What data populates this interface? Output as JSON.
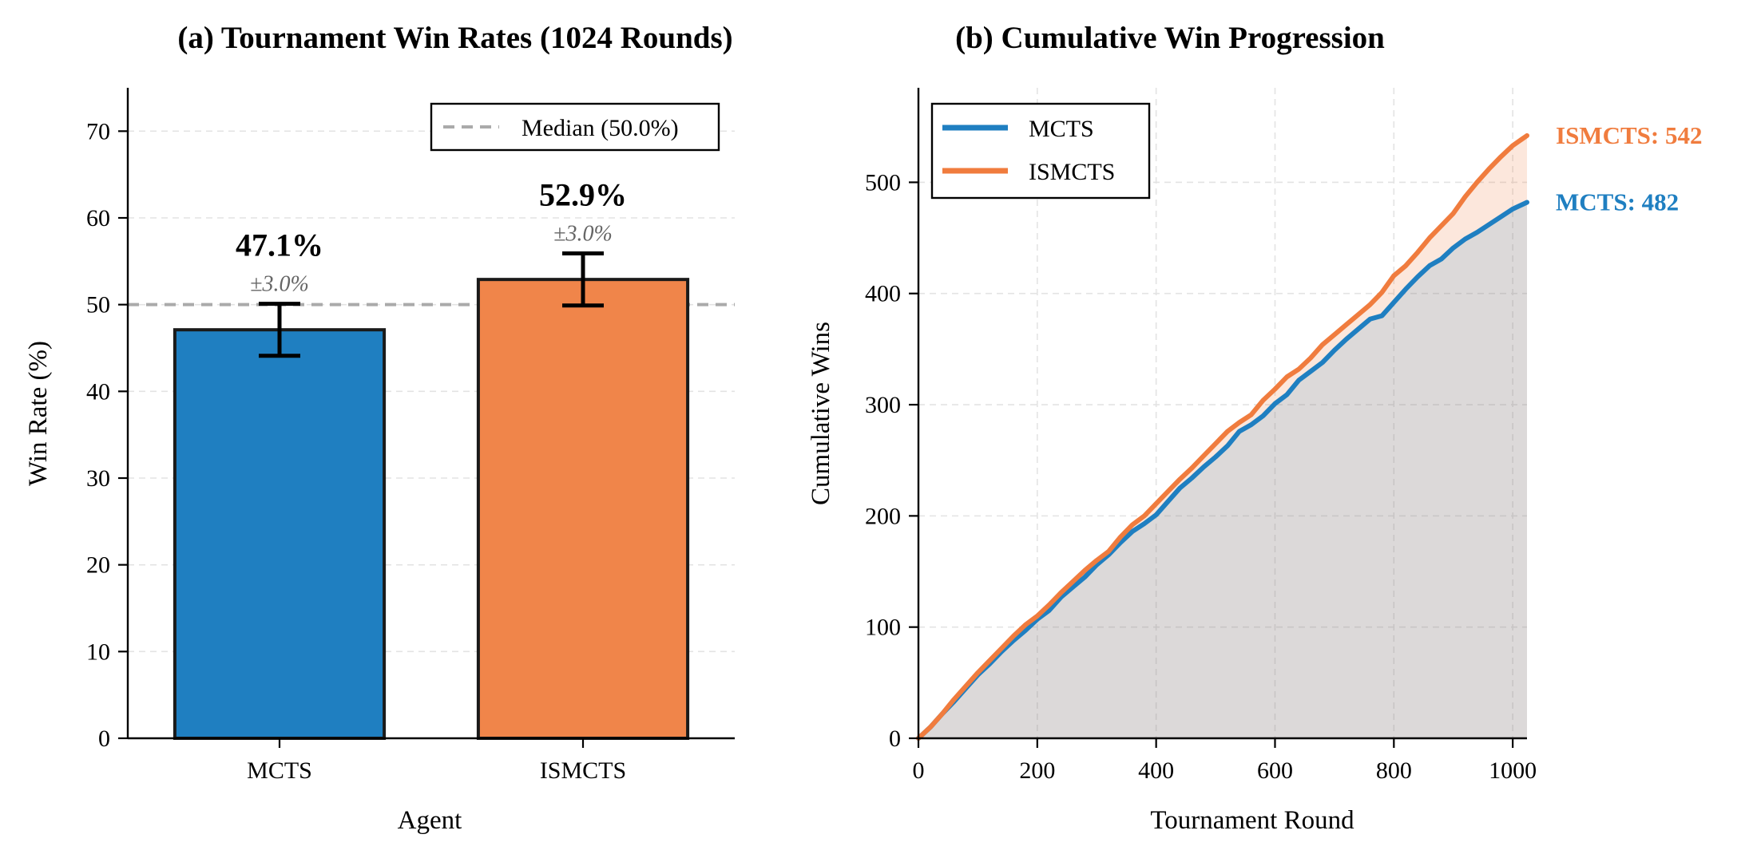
{
  "chart_data": [
    {
      "type": "bar",
      "title": "(a) Tournament Win Rates (1024 Rounds)",
      "xlabel": "Agent",
      "ylabel": "Win Rate (%)",
      "ylim": [
        0,
        75
      ],
      "yticks": [
        0,
        10,
        20,
        30,
        40,
        50,
        60,
        70
      ],
      "categories": [
        "MCTS",
        "ISMCTS"
      ],
      "values": [
        47.1,
        52.9
      ],
      "errors": [
        3.0,
        3.0
      ],
      "value_labels": [
        "47.1%",
        "52.9%"
      ],
      "error_labels": [
        "±3.0%",
        "±3.0%"
      ],
      "colors": [
        "#1f7fc1",
        "#f0854a"
      ],
      "reference_line": {
        "value": 50.0,
        "label": "Median (50.0%)",
        "color": "#aaaaaa"
      },
      "legend": "top-right",
      "grid": true
    },
    {
      "type": "line",
      "title": "(b) Cumulative Win Progression",
      "xlabel": "Tournament Round",
      "ylabel": "Cumulative Wins",
      "xlim": [
        0,
        1024
      ],
      "ylim": [
        0,
        585
      ],
      "xticks": [
        0,
        200,
        400,
        600,
        800,
        1000
      ],
      "yticks": [
        0,
        100,
        200,
        300,
        400,
        500
      ],
      "legend": "top-left",
      "grid": true,
      "series": [
        {
          "name": "MCTS",
          "color": "#1f7fc1",
          "end_label": "MCTS: 482",
          "x": [
            0,
            20,
            40,
            60,
            80,
            100,
            120,
            140,
            160,
            180,
            200,
            220,
            240,
            260,
            280,
            300,
            320,
            340,
            360,
            380,
            400,
            420,
            440,
            460,
            480,
            500,
            520,
            540,
            560,
            580,
            600,
            620,
            640,
            660,
            680,
            700,
            720,
            740,
            760,
            780,
            800,
            820,
            840,
            860,
            880,
            900,
            920,
            940,
            960,
            980,
            1000,
            1024
          ],
          "y": [
            0,
            10,
            22,
            33,
            45,
            57,
            67,
            78,
            88,
            97,
            107,
            115,
            127,
            136,
            145,
            156,
            165,
            176,
            186,
            193,
            201,
            213,
            225,
            234,
            244,
            253,
            263,
            276,
            282,
            290,
            301,
            309,
            322,
            330,
            338,
            349,
            359,
            368,
            377,
            380,
            392,
            404,
            415,
            425,
            431,
            441,
            449,
            455,
            462,
            469,
            476,
            482
          ]
        },
        {
          "name": "ISMCTS",
          "color": "#f07c3e",
          "end_label": "ISMCTS: 542",
          "x": [
            0,
            20,
            40,
            60,
            80,
            100,
            120,
            140,
            160,
            180,
            200,
            220,
            240,
            260,
            280,
            300,
            320,
            340,
            360,
            380,
            400,
            420,
            440,
            460,
            480,
            500,
            520,
            540,
            560,
            580,
            600,
            620,
            640,
            660,
            680,
            700,
            720,
            740,
            760,
            780,
            800,
            820,
            840,
            860,
            880,
            900,
            920,
            940,
            960,
            980,
            1000,
            1024
          ],
          "y": [
            0,
            10,
            22,
            35,
            47,
            59,
            70,
            81,
            92,
            102,
            110,
            120,
            131,
            141,
            151,
            160,
            168,
            181,
            192,
            200,
            211,
            222,
            233,
            243,
            254,
            265,
            276,
            284,
            291,
            304,
            314,
            325,
            332,
            342,
            354,
            363,
            372,
            381,
            390,
            401,
            416,
            425,
            437,
            450,
            461,
            472,
            487,
            500,
            512,
            523,
            533,
            542
          ]
        }
      ]
    }
  ]
}
